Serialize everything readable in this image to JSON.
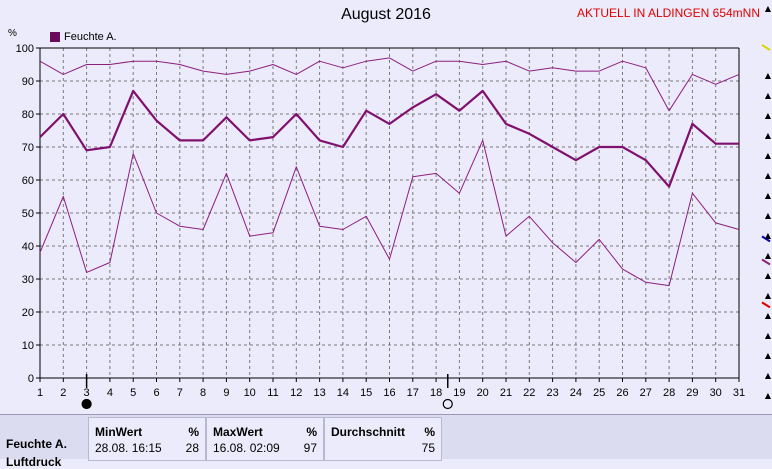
{
  "header": {
    "title": "August 2016",
    "station": "AKTUELL IN ALDINGEN 654mNN"
  },
  "unit_label": "%",
  "legend": {
    "label": "Feuchte A.",
    "color": "#6a0a5a"
  },
  "chart_data": {
    "type": "line",
    "title": "August 2016",
    "xlabel": "",
    "ylabel": "%",
    "x": [
      1,
      2,
      3,
      4,
      5,
      6,
      7,
      8,
      9,
      10,
      11,
      12,
      13,
      14,
      15,
      16,
      17,
      18,
      19,
      20,
      21,
      22,
      23,
      24,
      25,
      26,
      27,
      28,
      29,
      30,
      31
    ],
    "xlim": [
      1,
      31
    ],
    "ylim": [
      0,
      100
    ],
    "yticks": [
      0,
      10,
      20,
      30,
      40,
      50,
      60,
      70,
      80,
      90,
      100
    ],
    "grid": true,
    "legend_position": "top-left",
    "series": [
      {
        "name": "Feuchte A.",
        "role": "max",
        "color": "#8c1e80",
        "width": 1,
        "values": [
          96,
          92,
          95,
          95,
          96,
          96,
          95,
          93,
          92,
          93,
          95,
          92,
          96,
          94,
          96,
          97,
          93,
          96,
          96,
          95,
          96,
          93,
          94,
          93,
          93,
          96,
          94,
          81,
          92,
          89,
          92
        ]
      },
      {
        "role": "avg",
        "color": "#80106e",
        "width": 2.2,
        "values": [
          73,
          80,
          69,
          70,
          87,
          78,
          72,
          72,
          79,
          72,
          73,
          80,
          72,
          70,
          81,
          77,
          82,
          86,
          81,
          87,
          77,
          74,
          70,
          66,
          70,
          70,
          66,
          58,
          77,
          71,
          71
        ]
      },
      {
        "role": "min",
        "color": "#8c1e80",
        "width": 1,
        "values": [
          38,
          55,
          32,
          35,
          68,
          50,
          46,
          45,
          62,
          43,
          44,
          64,
          46,
          45,
          49,
          36,
          61,
          62,
          56,
          72,
          43,
          49,
          41,
          35,
          42,
          33,
          29,
          28,
          56,
          47,
          45
        ]
      }
    ],
    "moon_phases": [
      {
        "day": 3,
        "phase": "new"
      },
      {
        "day": 18.5,
        "phase": "full"
      }
    ]
  },
  "side_indicators": [
    {
      "color": "#d6d600",
      "value": 100
    },
    {
      "color": "#0000c0",
      "value": 42
    },
    {
      "color": "#8c1e80",
      "value": 35
    },
    {
      "color": "#e00000",
      "value": 22
    }
  ],
  "stats": {
    "row_label": "Feuchte A.",
    "row_label_2": "Luftdruck",
    "min": {
      "header": "MinWert",
      "unit": "%",
      "date": "28.08.  16:15",
      "value": "28"
    },
    "max": {
      "header": "MaxWert",
      "unit": "%",
      "date": "16.08.  02:09",
      "value": "97"
    },
    "avg": {
      "header": "Durchschnitt",
      "unit": "%",
      "value": "75"
    }
  }
}
